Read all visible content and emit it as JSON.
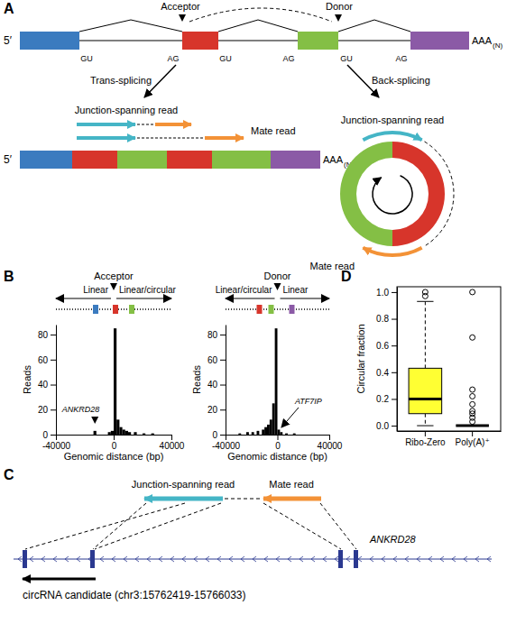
{
  "panel_labels": [
    "A",
    "B",
    "C",
    "D"
  ],
  "panel_a": {
    "acceptor": "Acceptor",
    "donor": "Donor",
    "five_prime": "5′",
    "poly_a": "AAA",
    "poly_a_sub": "(N)",
    "splice_sites": [
      "GU",
      "AG",
      "GU",
      "AG",
      "GU",
      "AG"
    ],
    "trans_splicing": "Trans-splicing",
    "back_splicing": "Back-splicing",
    "trans": {
      "junction_read": "Junction-spanning read",
      "mate_read": "Mate read",
      "five_prime": "5′",
      "poly_a": "AAA",
      "poly_a_sub": "(N)"
    },
    "circ": {
      "junction_read": "Junction-spanning read",
      "mate_read": "Mate read"
    }
  },
  "chart_data": [
    {
      "type": "histogram",
      "site": "Acceptor",
      "left_label": "Linear",
      "right_label": "Linear/circular",
      "x_label": "Genomic distance (bp)",
      "y_label": "Reads",
      "bins": [
        -40000,
        -38000,
        -36000,
        -34000,
        -32000,
        -30000,
        -28000,
        -26000,
        -24000,
        -22000,
        -20000,
        -18000,
        -16000,
        -14000,
        -12000,
        -10000,
        -8000,
        -6000,
        -4000,
        -2000,
        0,
        2000,
        4000,
        6000,
        8000,
        10000,
        12000,
        14000,
        16000,
        18000,
        20000,
        22000,
        24000,
        26000,
        28000,
        30000,
        32000,
        34000,
        36000,
        38000,
        40000
      ],
      "counts": [
        0,
        0,
        0,
        0,
        0,
        0,
        0,
        0,
        0,
        0,
        0,
        0,
        0,
        3,
        0,
        0,
        0,
        0,
        2,
        3,
        85,
        12,
        6,
        4,
        3,
        2,
        0,
        2,
        0,
        0,
        1,
        0,
        0,
        1,
        0,
        0,
        0,
        0,
        0,
        0
      ],
      "xlim": [
        -40000,
        40000
      ],
      "xticks": [
        -40000,
        0,
        40000
      ],
      "ylim": [
        0,
        88
      ],
      "yticks": [
        0,
        20,
        40,
        60,
        80
      ],
      "annotation": {
        "text": "ANKRD28",
        "x": -13000,
        "marker": "triangle"
      }
    },
    {
      "type": "histogram",
      "site": "Donor",
      "left_label": "Linear/circular",
      "right_label": "Linear",
      "x_label": "Genomic distance (bp)",
      "y_label": "Reads",
      "bins": [
        -40000,
        -38000,
        -36000,
        -34000,
        -32000,
        -30000,
        -28000,
        -26000,
        -24000,
        -22000,
        -20000,
        -18000,
        -16000,
        -14000,
        -12000,
        -10000,
        -8000,
        -6000,
        -4000,
        -2000,
        0,
        2000,
        4000,
        6000,
        8000,
        10000,
        12000,
        14000,
        16000,
        18000,
        20000,
        22000,
        24000,
        26000,
        28000,
        30000,
        32000,
        34000,
        36000,
        38000,
        40000
      ],
      "counts": [
        0,
        0,
        0,
        0,
        0,
        1,
        0,
        0,
        2,
        0,
        2,
        0,
        3,
        0,
        4,
        6,
        8,
        12,
        25,
        85,
        4,
        2,
        0,
        1,
        0,
        0,
        1,
        0,
        0,
        0,
        0,
        0,
        0,
        0,
        0,
        0,
        0,
        0,
        0,
        0
      ],
      "xlim": [
        -40000,
        40000
      ],
      "xticks": [
        -40000,
        0,
        40000
      ],
      "ylim": [
        0,
        88
      ],
      "yticks": [
        0,
        20,
        40,
        60,
        80
      ],
      "annotation": {
        "text": "ATF7IP",
        "x": 1000,
        "marker": "arrow"
      }
    },
    {
      "type": "box",
      "categories": [
        "Ribo-Zero",
        "Poly(A)⁺"
      ],
      "y_label": "Circular fraction",
      "ylim": [
        -0.04,
        1.04
      ],
      "yticks": [
        {
          "value": 0,
          "label": "0.0"
        },
        0.2,
        0.4,
        0.6,
        0.8,
        {
          "value": 1,
          "label": "1.0"
        }
      ],
      "colors": [
        "#ffff33",
        "#ffffff"
      ],
      "boxes": [
        {
          "min": 0,
          "q1": 0.09,
          "median": 0.2,
          "q3": 0.43,
          "max": 0.93,
          "outliers": [
            0.97,
            1.0
          ]
        },
        {
          "min": 0,
          "q1": 0,
          "median": 0,
          "q3": 0,
          "max": 0,
          "outliers": [
            1.0,
            0.66,
            0.27,
            0.22,
            0.16,
            0.11,
            0.09,
            0.06,
            0.03
          ]
        }
      ]
    }
  ],
  "panel_c": {
    "junction_read": "Junction-spanning read",
    "mate_read": "Mate read",
    "gene": "ANKRD28",
    "circ_label": "circRNA candidate (chr3:15762419-15766033)"
  }
}
